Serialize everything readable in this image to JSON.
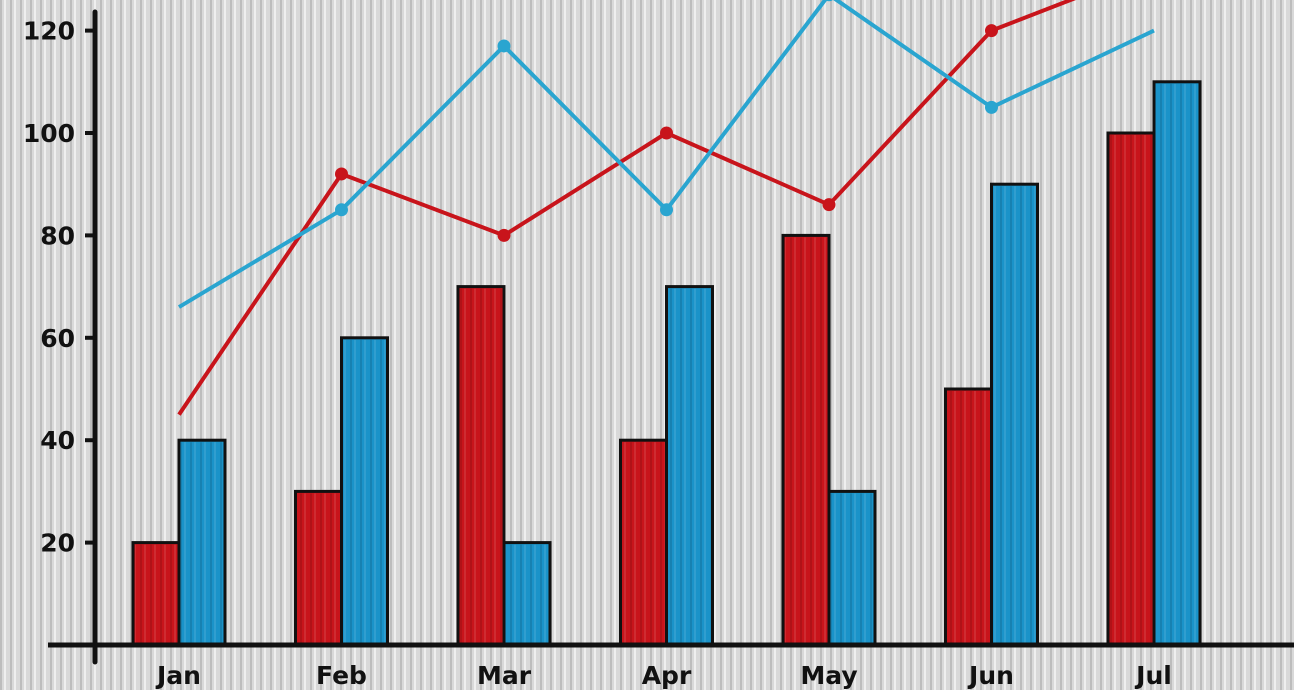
{
  "chart_data": {
    "type": "bar",
    "categories": [
      "Jan",
      "Feb",
      "Mar",
      "Apr",
      "May",
      "Jun",
      "Jul"
    ],
    "series": [
      {
        "kind": "bar",
        "color": "#c8141b",
        "values": [
          20,
          30,
          70,
          40,
          80,
          50,
          100
        ]
      },
      {
        "kind": "bar",
        "color": "#1a93c9",
        "values": [
          40,
          60,
          20,
          70,
          30,
          90,
          110
        ]
      },
      {
        "kind": "line",
        "color": "#c8141b",
        "values": [
          45,
          92,
          80,
          100,
          86,
          120,
          127
        ]
      },
      {
        "kind": "line",
        "color": "#2aa5d0",
        "values": [
          66,
          85,
          117,
          85,
          127,
          105,
          120
        ]
      }
    ],
    "y_ticks": [
      20,
      40,
      60,
      80,
      100,
      120
    ],
    "ylim": [
      0,
      125
    ],
    "title": "",
    "xlabel": "",
    "ylabel": "",
    "grid": false,
    "background": "gray vertically ribbed texture"
  }
}
